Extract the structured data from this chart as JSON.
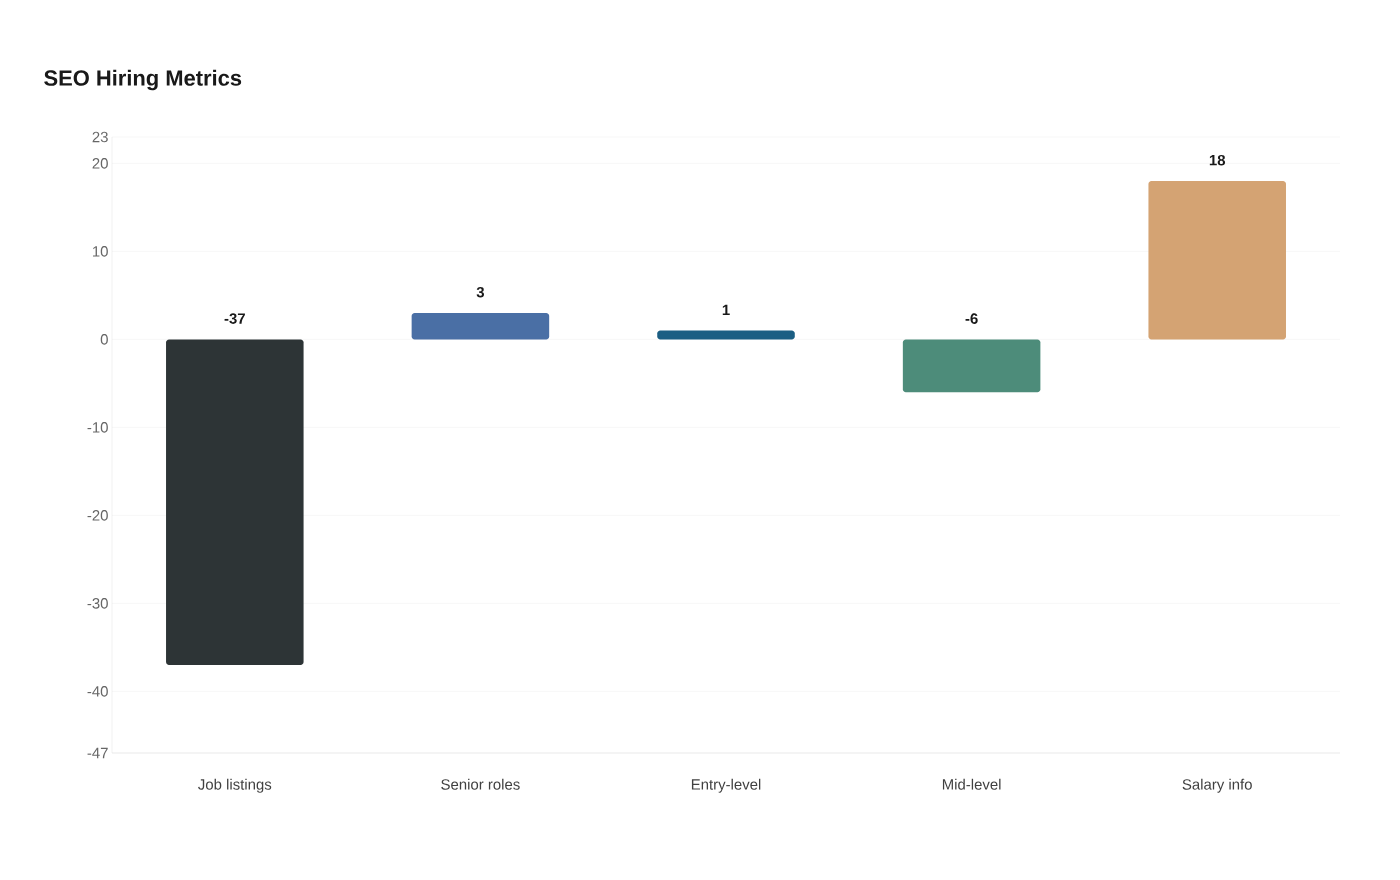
{
  "chart_data": {
    "type": "bar",
    "title": "SEO Hiring Metrics",
    "categories": [
      "Job listings",
      "Senior roles",
      "Entry-level",
      "Mid-level",
      "Salary info"
    ],
    "values": [
      -37,
      3,
      1,
      -6,
      18
    ],
    "colors": [
      "#2d3436",
      "#4a6fa5",
      "#1b5e83",
      "#4d8c7a",
      "#d4a373"
    ],
    "ylim": [
      -47,
      23
    ],
    "yticks": [
      -47,
      -40,
      -30,
      -20,
      -10,
      0,
      10,
      20,
      23
    ],
    "grid": "y",
    "data_labels": true
  }
}
